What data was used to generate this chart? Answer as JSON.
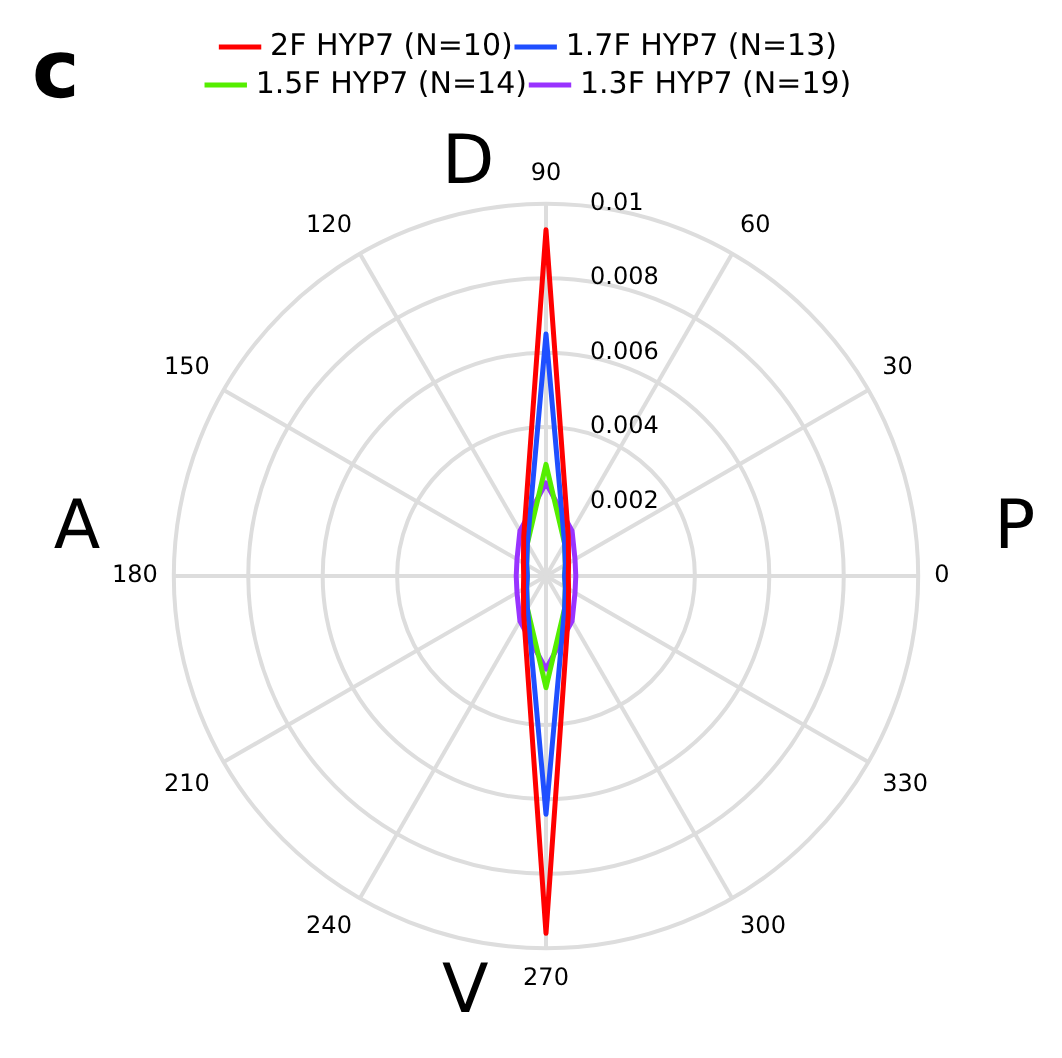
{
  "chart_data": {
    "type": "radar",
    "categories": [
      "90",
      "60",
      "30",
      "0",
      "330",
      "300",
      "270",
      "240",
      "210",
      "180",
      "150",
      "120"
    ],
    "series": [
      {
        "name": "2F HYP7 (N=10)",
        "color": "#ff0000",
        "values": [
          0.0093,
          0.0012,
          0.0007,
          0.0006,
          0.0007,
          0.0012,
          0.0096,
          0.0012,
          0.0007,
          0.0006,
          0.0007,
          0.0012
        ]
      },
      {
        "name": "1.7F HYP7 (N=13)",
        "color": "#1f4fff",
        "values": [
          0.0065,
          0.001,
          0.0006,
          0.0005,
          0.0006,
          0.001,
          0.0064,
          0.001,
          0.0006,
          0.0005,
          0.0006,
          0.001
        ]
      },
      {
        "name": "1.5F HYP7 (N=14)",
        "color": "#55ee00",
        "values": [
          0.003,
          0.001,
          0.0006,
          0.0005,
          0.0006,
          0.001,
          0.003,
          0.001,
          0.0006,
          0.0005,
          0.0006,
          0.001
        ]
      },
      {
        "name": "1.3F HYP7 (N=19)",
        "color": "#9933ff",
        "values": [
          0.0025,
          0.0014,
          0.0009,
          0.0008,
          0.0009,
          0.0014,
          0.0025,
          0.0014,
          0.0009,
          0.0008,
          0.0009,
          0.0014
        ]
      }
    ],
    "ylim": [
      0,
      0.01
    ],
    "yticks": [
      0.002,
      0.004,
      0.006,
      0.008,
      0.01
    ],
    "annotations": [
      "c",
      "D",
      "A",
      "P",
      "V"
    ],
    "grid": true,
    "legend": "top",
    "marker": "none",
    "line_style": "solid"
  }
}
